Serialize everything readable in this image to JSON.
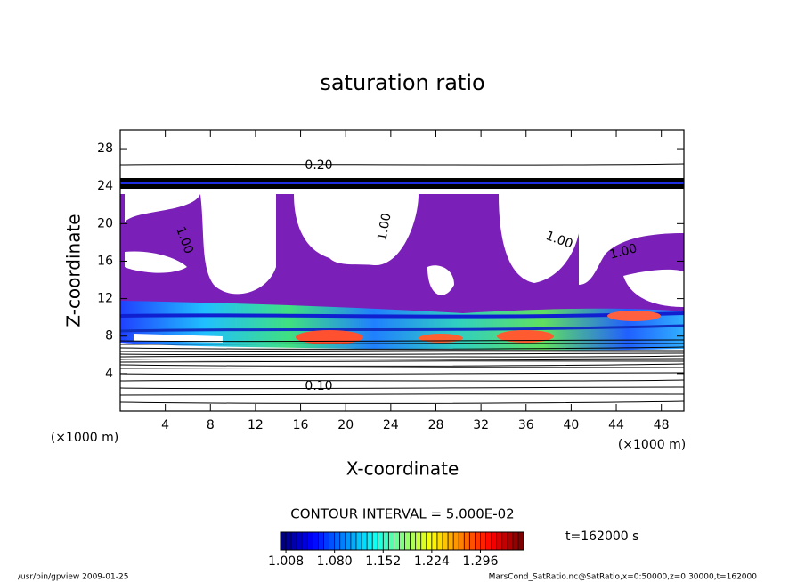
{
  "chart_data": {
    "type": "contour",
    "title": "saturation ratio",
    "xlabel": "X-coordinate",
    "ylabel": "Z-coordinate",
    "x_unit": "(×1000 m)",
    "y_unit": "(×1000 m)",
    "xlim": [
      0,
      50
    ],
    "ylim": [
      0,
      30
    ],
    "xticks": [
      4,
      8,
      12,
      16,
      20,
      24,
      28,
      32,
      36,
      40,
      44,
      48
    ],
    "yticks": [
      4,
      8,
      12,
      16,
      20,
      24,
      28
    ],
    "contour_labels": [
      "0.20",
      "1.00",
      "1.00",
      "1.00",
      "1.00",
      "0.10"
    ],
    "contour_interval": "CONTOUR INTERVAL = 5.000E-02",
    "colorbar": {
      "clim": [
        1.0,
        1.36
      ],
      "ticks": [
        1.008,
        {
          "value": 1.08,
          "label": "1.080"
        },
        1.152,
        1.224,
        1.296
      ]
    },
    "time_label": "t=162000 s",
    "footer_left": "/usr/bin/gpview   2009-01-25",
    "footer_right": "MarsCond_SatRatio.nc@SatRatio,x=0:50000,z=0:30000,t=162000"
  }
}
